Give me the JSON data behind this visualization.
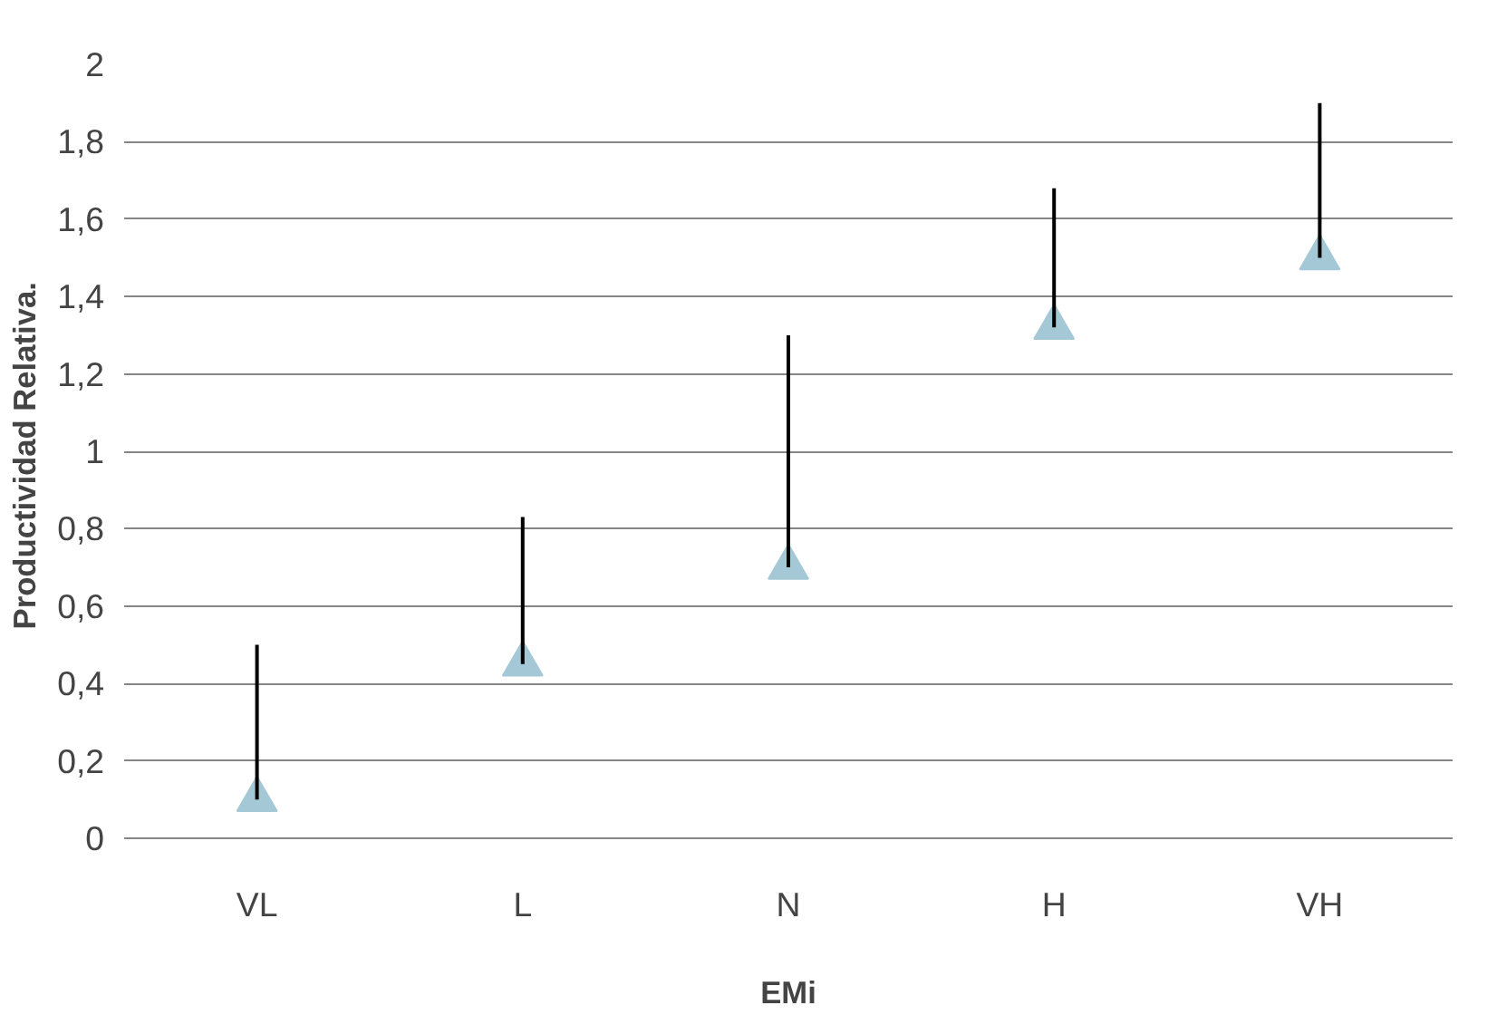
{
  "chart_data": {
    "type": "scatter",
    "xlabel": "EMi",
    "ylabel": "Productividad  Relativa.",
    "categories": [
      "VL",
      "L",
      "N",
      "H",
      "VH"
    ],
    "values": [
      0.1,
      0.45,
      0.7,
      1.32,
      1.5
    ],
    "errors": [
      [
        0.1,
        0.5
      ],
      [
        0.45,
        0.83
      ],
      [
        0.7,
        1.3
      ],
      [
        1.32,
        1.68
      ],
      [
        1.5,
        1.9
      ]
    ],
    "color": "#a5c8d6",
    "marker": "triangle",
    "grid": "y",
    "ylim": [
      0,
      2
    ],
    "yticks": [
      0,
      {
        "value": 0.2,
        "label": "0,2"
      },
      {
        "value": 0.4,
        "label": "0,4"
      },
      {
        "value": 0.6,
        "label": "0,6"
      },
      {
        "value": 0.8,
        "label": "0,8"
      },
      1,
      {
        "value": 1.2,
        "label": "1,2"
      },
      {
        "value": 1.4,
        "label": "1,4"
      },
      {
        "value": 1.6,
        "label": "1,6"
      },
      {
        "value": 1.8,
        "label": "1,8"
      },
      2
    ]
  }
}
